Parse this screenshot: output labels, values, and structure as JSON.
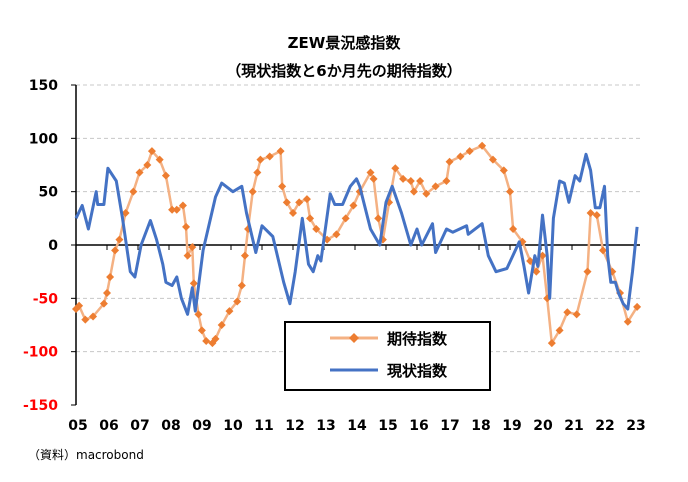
{
  "chart_data": {
    "type": "line",
    "title": "ZEW景況感指数",
    "subtitle": "（現状指数と6か月先の期待指数）",
    "source": "（資料）macrobond",
    "xlabel": "",
    "ylabel": "",
    "ylim": [
      -150,
      150
    ],
    "yticks": [
      "150",
      "100",
      "50",
      "0",
      "-50",
      "-100",
      "-150"
    ],
    "ytick_values": [
      150,
      100,
      50,
      0,
      -50,
      -100,
      -150
    ],
    "xlim": [
      2005,
      2023.15
    ],
    "xticks": [
      "05",
      "06",
      "07",
      "08",
      "09",
      "10",
      "11",
      "12",
      "13",
      "14",
      "15",
      "16",
      "17",
      "18",
      "19",
      "20",
      "21",
      "22",
      "23"
    ],
    "grid": true,
    "legend_position": "bottom-center",
    "colors": {
      "expectations_line": "#F4B183",
      "expectations_marker": "#ED7D31",
      "current": "#4472C4",
      "grid": "#c8c8c8"
    },
    "series": [
      {
        "name": "期待指数",
        "points": [
          [
            2005.0,
            -60
          ],
          [
            2005.1,
            -57
          ],
          [
            2005.3,
            -70
          ],
          [
            2005.55,
            -67
          ],
          [
            2005.9,
            -55
          ],
          [
            2006.0,
            -45
          ],
          [
            2006.1,
            -30
          ],
          [
            2006.26,
            -5
          ],
          [
            2006.4,
            5
          ],
          [
            2006.6,
            30
          ],
          [
            2006.85,
            50
          ],
          [
            2007.05,
            68
          ],
          [
            2007.3,
            75
          ],
          [
            2007.45,
            88
          ],
          [
            2007.7,
            80
          ],
          [
            2007.9,
            65
          ],
          [
            2008.1,
            33
          ],
          [
            2008.25,
            33
          ],
          [
            2008.45,
            37
          ],
          [
            2008.55,
            17
          ],
          [
            2008.6,
            -10
          ],
          [
            2008.75,
            -2
          ],
          [
            2008.8,
            -36
          ],
          [
            2008.95,
            -65
          ],
          [
            2009.06,
            -80
          ],
          [
            2009.2,
            -90
          ],
          [
            2009.4,
            -92
          ],
          [
            2009.5,
            -88
          ],
          [
            2009.7,
            -75
          ],
          [
            2009.95,
            -62
          ],
          [
            2010.2,
            -53
          ],
          [
            2010.35,
            -38
          ],
          [
            2010.45,
            -10
          ],
          [
            2010.55,
            15
          ],
          [
            2010.7,
            50
          ],
          [
            2010.85,
            68
          ],
          [
            2010.95,
            80
          ],
          [
            2011.25,
            83
          ],
          [
            2011.6,
            88
          ],
          [
            2011.65,
            55
          ],
          [
            2011.8,
            40
          ],
          [
            2012.0,
            30
          ],
          [
            2012.2,
            40
          ],
          [
            2012.45,
            43
          ],
          [
            2012.55,
            25
          ],
          [
            2012.75,
            15
          ],
          [
            2013.1,
            5
          ],
          [
            2013.4,
            10
          ],
          [
            2013.7,
            25
          ],
          [
            2013.95,
            37
          ],
          [
            2014.15,
            50
          ],
          [
            2014.5,
            68
          ],
          [
            2014.6,
            62
          ],
          [
            2014.75,
            25
          ],
          [
            2014.9,
            5
          ],
          [
            2015.1,
            40
          ],
          [
            2015.3,
            72
          ],
          [
            2015.55,
            62
          ],
          [
            2015.8,
            60
          ],
          [
            2015.9,
            50
          ],
          [
            2016.1,
            60
          ],
          [
            2016.3,
            48
          ],
          [
            2016.6,
            55
          ],
          [
            2016.95,
            60
          ],
          [
            2017.05,
            78
          ],
          [
            2017.4,
            83
          ],
          [
            2017.7,
            88
          ],
          [
            2018.1,
            93
          ],
          [
            2018.45,
            80
          ],
          [
            2018.8,
            70
          ],
          [
            2019.0,
            50
          ],
          [
            2019.1,
            15
          ],
          [
            2019.4,
            3
          ],
          [
            2019.65,
            -15
          ],
          [
            2019.85,
            -25
          ],
          [
            2020.05,
            -10
          ],
          [
            2020.2,
            -50
          ],
          [
            2020.35,
            -92
          ],
          [
            2020.6,
            -80
          ],
          [
            2020.85,
            -63
          ],
          [
            2021.15,
            -65
          ],
          [
            2021.5,
            -25
          ],
          [
            2021.6,
            30
          ],
          [
            2021.8,
            28
          ],
          [
            2022.0,
            -5
          ],
          [
            2022.3,
            -25
          ],
          [
            2022.55,
            -45
          ],
          [
            2022.8,
            -72
          ],
          [
            2023.1,
            -58
          ]
        ]
      },
      {
        "name": "現状指数",
        "points": [
          [
            2005.0,
            25
          ],
          [
            2005.2,
            37
          ],
          [
            2005.4,
            15
          ],
          [
            2005.65,
            50
          ],
          [
            2005.7,
            38
          ],
          [
            2005.9,
            38
          ],
          [
            2006.03,
            72
          ],
          [
            2006.3,
            60
          ],
          [
            2006.5,
            25
          ],
          [
            2006.75,
            -25
          ],
          [
            2006.9,
            -30
          ],
          [
            2007.1,
            0
          ],
          [
            2007.4,
            23
          ],
          [
            2007.6,
            5
          ],
          [
            2007.8,
            -18
          ],
          [
            2007.9,
            -35
          ],
          [
            2008.1,
            -38
          ],
          [
            2008.25,
            -30
          ],
          [
            2008.4,
            -50
          ],
          [
            2008.6,
            -65
          ],
          [
            2008.75,
            -40
          ],
          [
            2008.85,
            -62
          ],
          [
            2009.1,
            -5
          ],
          [
            2009.5,
            45
          ],
          [
            2009.7,
            58
          ],
          [
            2010.06,
            50
          ],
          [
            2010.35,
            55
          ],
          [
            2010.5,
            30
          ],
          [
            2010.8,
            -7
          ],
          [
            2011.0,
            18
          ],
          [
            2011.35,
            8
          ],
          [
            2011.7,
            -35
          ],
          [
            2011.9,
            -55
          ],
          [
            2012.07,
            -25
          ],
          [
            2012.3,
            25
          ],
          [
            2012.5,
            -18
          ],
          [
            2012.65,
            -25
          ],
          [
            2012.8,
            -10
          ],
          [
            2012.9,
            -15
          ],
          [
            2013.2,
            48
          ],
          [
            2013.35,
            38
          ],
          [
            2013.6,
            38
          ],
          [
            2013.85,
            55
          ],
          [
            2014.05,
            62
          ],
          [
            2014.15,
            55
          ],
          [
            2014.5,
            15
          ],
          [
            2014.8,
            0
          ],
          [
            2015.0,
            40
          ],
          [
            2015.2,
            55
          ],
          [
            2015.5,
            30
          ],
          [
            2015.8,
            0
          ],
          [
            2016.0,
            15
          ],
          [
            2016.15,
            0
          ],
          [
            2016.5,
            20
          ],
          [
            2016.6,
            -7
          ],
          [
            2016.95,
            15
          ],
          [
            2017.15,
            12
          ],
          [
            2017.6,
            18
          ],
          [
            2017.65,
            10
          ],
          [
            2018.1,
            20
          ],
          [
            2018.3,
            -10
          ],
          [
            2018.55,
            -25
          ],
          [
            2018.9,
            -22
          ],
          [
            2019.3,
            3
          ],
          [
            2019.45,
            -20
          ],
          [
            2019.6,
            -45
          ],
          [
            2019.8,
            -10
          ],
          [
            2019.9,
            -20
          ],
          [
            2020.05,
            28
          ],
          [
            2020.2,
            -10
          ],
          [
            2020.28,
            -50
          ],
          [
            2020.4,
            25
          ],
          [
            2020.6,
            60
          ],
          [
            2020.75,
            58
          ],
          [
            2020.9,
            40
          ],
          [
            2021.1,
            65
          ],
          [
            2021.25,
            60
          ],
          [
            2021.45,
            85
          ],
          [
            2021.6,
            70
          ],
          [
            2021.75,
            35
          ],
          [
            2021.9,
            35
          ],
          [
            2022.05,
            55
          ],
          [
            2022.15,
            -10
          ],
          [
            2022.25,
            -35
          ],
          [
            2022.4,
            -35
          ],
          [
            2022.5,
            -45
          ],
          [
            2022.65,
            -55
          ],
          [
            2022.8,
            -60
          ],
          [
            2022.95,
            -25
          ],
          [
            2023.1,
            17
          ]
        ]
      }
    ]
  }
}
